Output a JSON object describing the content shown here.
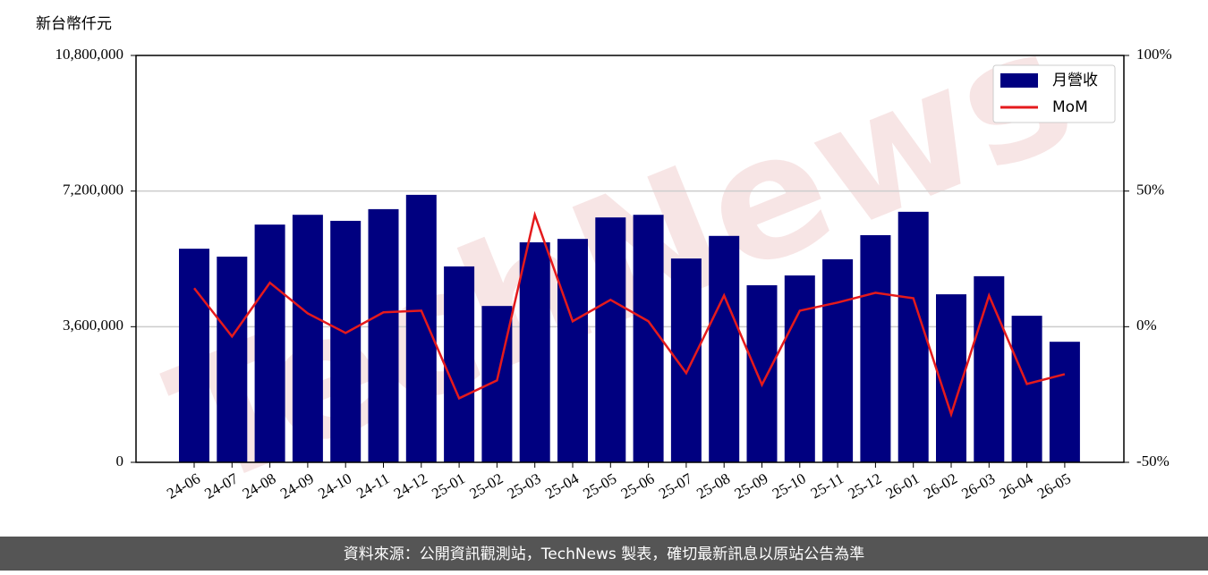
{
  "chart_data": {
    "type": "bar_line",
    "y_label": "新台幣仟元",
    "watermark": "TechNews",
    "footer": "資料來源：公開資訊觀測站，TechNews 製表，確切最新訊息以原站公告為準",
    "categories": [
      "24-06",
      "24-07",
      "24-08",
      "24-09",
      "24-10",
      "24-11",
      "24-12",
      "25-01",
      "25-02",
      "25-03",
      "25-04",
      "25-05",
      "25-06",
      "25-07",
      "25-08",
      "25-09",
      "25-10",
      "25-11",
      "25-12",
      "26-01",
      "26-02",
      "26-03",
      "26-04",
      "26-05"
    ],
    "series": [
      {
        "name": "月營收",
        "type": "bar",
        "color": "#000080",
        "values": [
          5670000,
          5460000,
          6310000,
          6570000,
          6410000,
          6720000,
          7100000,
          5200000,
          4150000,
          5840000,
          5930000,
          6500000,
          6570000,
          5410000,
          6010000,
          4700000,
          4960000,
          5390000,
          6030000,
          6650000,
          4460000,
          4940000,
          3890000,
          3200000
        ]
      },
      {
        "name": "MoM",
        "type": "line",
        "axis": "y2",
        "color": "#e41a1c",
        "values": [
          14.2,
          -3.6,
          16.2,
          4.9,
          -2.3,
          5.3,
          5.9,
          -26.4,
          -19.8,
          41.2,
          2.0,
          9.9,
          2.0,
          -17.1,
          11.5,
          -21.4,
          5.9,
          8.9,
          12.5,
          10.5,
          -32.3,
          11.5,
          -21.1,
          -17.5
        ]
      }
    ],
    "ylim": [
      0,
      10800000
    ],
    "yticks": [
      0,
      {
        "value": 3600000,
        "label": "3,600,000"
      },
      {
        "value": 7200000,
        "label": "7,200,000"
      },
      {
        "value": 10800000,
        "label": "10,800,000"
      }
    ],
    "y2lim": [
      -50,
      100
    ],
    "y2ticks": [
      {
        "value": -50,
        "label": "-50%"
      },
      {
        "value": 0,
        "label": "0%"
      },
      {
        "value": 50,
        "label": "50%"
      },
      {
        "value": 100,
        "label": "100%"
      }
    ],
    "grid": true,
    "legend": "upper right"
  }
}
